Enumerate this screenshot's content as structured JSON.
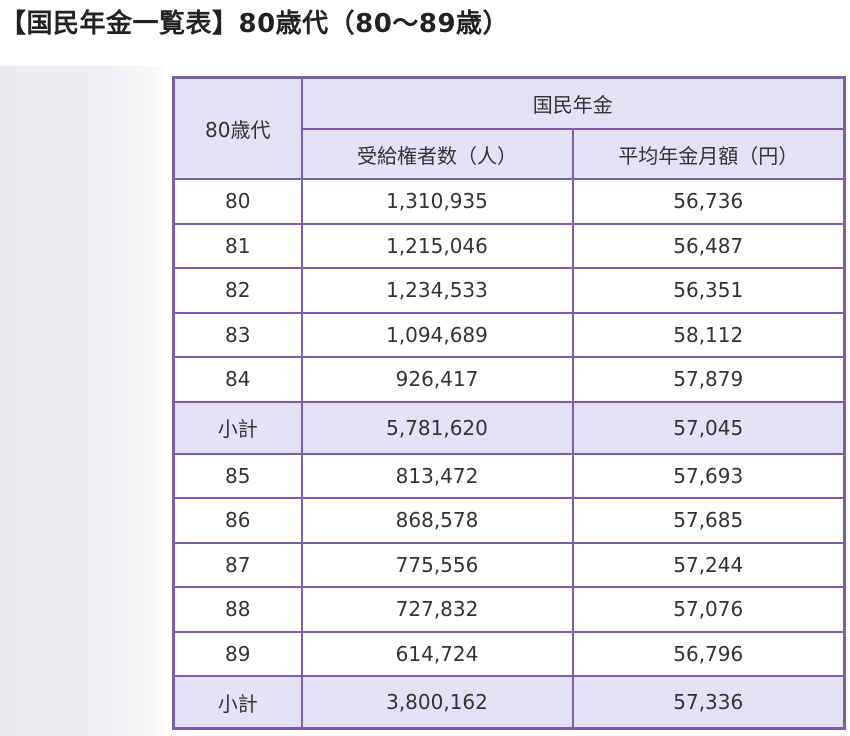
{
  "title": "【国民年金一覧表】80歳代（80〜89歳）",
  "colors": {
    "border": "#7d5fa9",
    "header_bg": "#e3e1f4",
    "subtotal_bg": "#e3e1f4",
    "text": "#333333"
  },
  "table": {
    "age_header": "80歳代",
    "group_header": "国民年金",
    "columns": [
      "受給権者数（人）",
      "平均年金月額（円）"
    ],
    "rows": [
      {
        "age": "80",
        "count": "1,310,935",
        "avg": "56,736"
      },
      {
        "age": "81",
        "count": "1,215,046",
        "avg": "56,487"
      },
      {
        "age": "82",
        "count": "1,234,533",
        "avg": "56,351"
      },
      {
        "age": "83",
        "count": "1,094,689",
        "avg": "58,112"
      },
      {
        "age": "84",
        "count": "926,417",
        "avg": "57,879"
      },
      {
        "age": "小計",
        "count": "5,781,620",
        "avg": "57,045"
      },
      {
        "age": "85",
        "count": "813,472",
        "avg": "57,693"
      },
      {
        "age": "86",
        "count": "868,578",
        "avg": "57,685"
      },
      {
        "age": "87",
        "count": "775,556",
        "avg": "57,244"
      },
      {
        "age": "88",
        "count": "727,832",
        "avg": "57,076"
      },
      {
        "age": "89",
        "count": "614,724",
        "avg": "56,796"
      },
      {
        "age": "小計",
        "count": "3,800,162",
        "avg": "57,336"
      }
    ]
  }
}
